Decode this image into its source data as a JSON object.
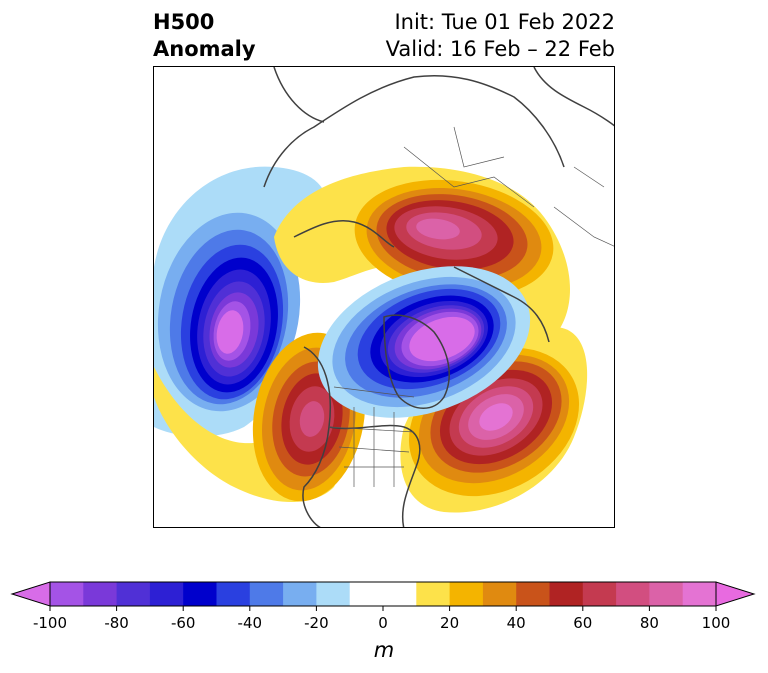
{
  "title": {
    "left_line1": "H500",
    "left_line2": "Anomaly",
    "right_line1": "Init: Tue 01 Feb 2022",
    "right_line2": "Valid: 16 Feb – 22 Feb"
  },
  "map": {
    "projection": "north-polar-stereographic",
    "features": [
      {
        "name": "north-pacific-low",
        "sign": "negative",
        "peak": -100
      },
      {
        "name": "arctic-greenland-low",
        "sign": "negative",
        "peak": -95
      },
      {
        "name": "western-north-america-high",
        "sign": "positive",
        "peak": 70
      },
      {
        "name": "western-atlantic-high",
        "sign": "positive",
        "peak": 100
      },
      {
        "name": "siberian-high",
        "sign": "positive",
        "peak": 85
      }
    ]
  },
  "colorbar": {
    "unit": "m",
    "range": [
      -100,
      100
    ],
    "step": 10,
    "tick_labels": [
      "-100",
      "-80",
      "-60",
      "-40",
      "-20",
      "0",
      "20",
      "40",
      "60",
      "80",
      "100"
    ],
    "colors": [
      "#a453e6",
      "#7a39d9",
      "#5030d6",
      "#2d20d4",
      "#0000cc",
      "#2a40e0",
      "#4e7ae8",
      "#78aef0",
      "#acdcf8",
      "#ffffff",
      "#ffffff",
      "#fde24a",
      "#f4b400",
      "#e08a10",
      "#c9531a",
      "#b02323",
      "#c43a50",
      "#d24e80",
      "#db62a8",
      "#e473d3"
    ],
    "extend_low_color": "#d86ce8",
    "extend_high_color": "#e86ae0"
  }
}
